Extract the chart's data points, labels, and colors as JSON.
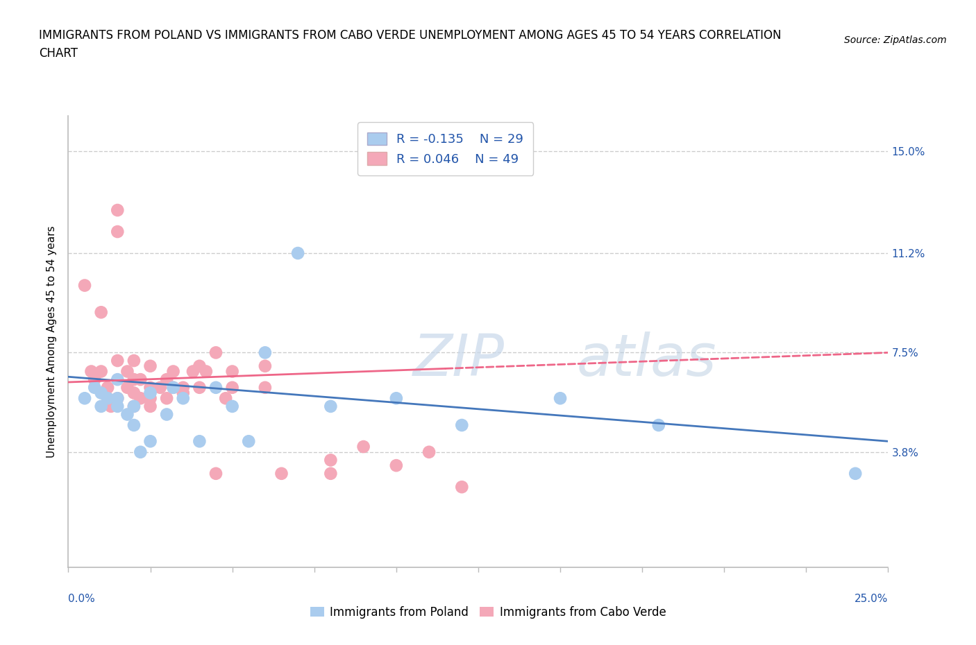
{
  "title_line1": "IMMIGRANTS FROM POLAND VS IMMIGRANTS FROM CABO VERDE UNEMPLOYMENT AMONG AGES 45 TO 54 YEARS CORRELATION",
  "title_line2": "CHART",
  "source": "Source: ZipAtlas.com",
  "ylabel": "Unemployment Among Ages 45 to 54 years",
  "xlim": [
    0.0,
    0.25
  ],
  "ylim": [
    -0.005,
    0.163
  ],
  "xticks": [
    0.0,
    0.025,
    0.05,
    0.075,
    0.1,
    0.125,
    0.15,
    0.175,
    0.2,
    0.225,
    0.25
  ],
  "xticklabels_show": [
    "0.0%",
    "25.0%"
  ],
  "xticklabels_show_pos": [
    0.0,
    0.25
  ],
  "ytick_positions": [
    0.038,
    0.075,
    0.112,
    0.15
  ],
  "ytick_labels": [
    "3.8%",
    "7.5%",
    "11.2%",
    "15.0%"
  ],
  "grid_color": "#cccccc",
  "background_color": "#ffffff",
  "poland_color": "#aaccee",
  "cabo_verde_color": "#f4a8b8",
  "poland_line_color": "#4477bb",
  "cabo_verde_line_color": "#ee6688",
  "legend_label_poland": "Immigrants from Poland",
  "legend_label_cabo": "Immigrants from Cabo Verde",
  "poland_R": -0.135,
  "poland_N": 29,
  "cabo_R": 0.046,
  "cabo_N": 49,
  "poland_x": [
    0.005,
    0.008,
    0.01,
    0.01,
    0.012,
    0.015,
    0.015,
    0.015,
    0.018,
    0.02,
    0.02,
    0.022,
    0.025,
    0.025,
    0.03,
    0.032,
    0.035,
    0.04,
    0.045,
    0.05,
    0.055,
    0.06,
    0.07,
    0.08,
    0.1,
    0.12,
    0.15,
    0.18,
    0.24
  ],
  "poland_y": [
    0.058,
    0.062,
    0.055,
    0.06,
    0.058,
    0.055,
    0.058,
    0.065,
    0.052,
    0.048,
    0.055,
    0.038,
    0.042,
    0.06,
    0.052,
    0.062,
    0.058,
    0.042,
    0.062,
    0.055,
    0.042,
    0.075,
    0.112,
    0.055,
    0.058,
    0.048,
    0.058,
    0.048,
    0.03
  ],
  "cabo_x": [
    0.005,
    0.007,
    0.008,
    0.01,
    0.01,
    0.012,
    0.012,
    0.013,
    0.015,
    0.015,
    0.015,
    0.015,
    0.018,
    0.018,
    0.02,
    0.02,
    0.02,
    0.02,
    0.022,
    0.022,
    0.025,
    0.025,
    0.025,
    0.025,
    0.028,
    0.03,
    0.03,
    0.032,
    0.032,
    0.035,
    0.035,
    0.038,
    0.04,
    0.04,
    0.042,
    0.045,
    0.045,
    0.048,
    0.05,
    0.05,
    0.06,
    0.06,
    0.065,
    0.08,
    0.08,
    0.09,
    0.1,
    0.11,
    0.12
  ],
  "cabo_y": [
    0.1,
    0.068,
    0.065,
    0.068,
    0.09,
    0.058,
    0.062,
    0.055,
    0.072,
    0.058,
    0.12,
    0.128,
    0.062,
    0.068,
    0.055,
    0.06,
    0.065,
    0.072,
    0.058,
    0.065,
    0.055,
    0.058,
    0.062,
    0.07,
    0.062,
    0.058,
    0.065,
    0.062,
    0.068,
    0.06,
    0.062,
    0.068,
    0.062,
    0.07,
    0.068,
    0.075,
    0.03,
    0.058,
    0.062,
    0.068,
    0.062,
    0.07,
    0.03,
    0.03,
    0.035,
    0.04,
    0.033,
    0.038,
    0.025
  ],
  "watermark_ZI": "ZI",
  "watermark_P": "P",
  "watermark_atlas": "atlas",
  "axis_label_color": "#2255aa",
  "tick_color": "#2255aa",
  "spine_color": "#bbbbbb"
}
